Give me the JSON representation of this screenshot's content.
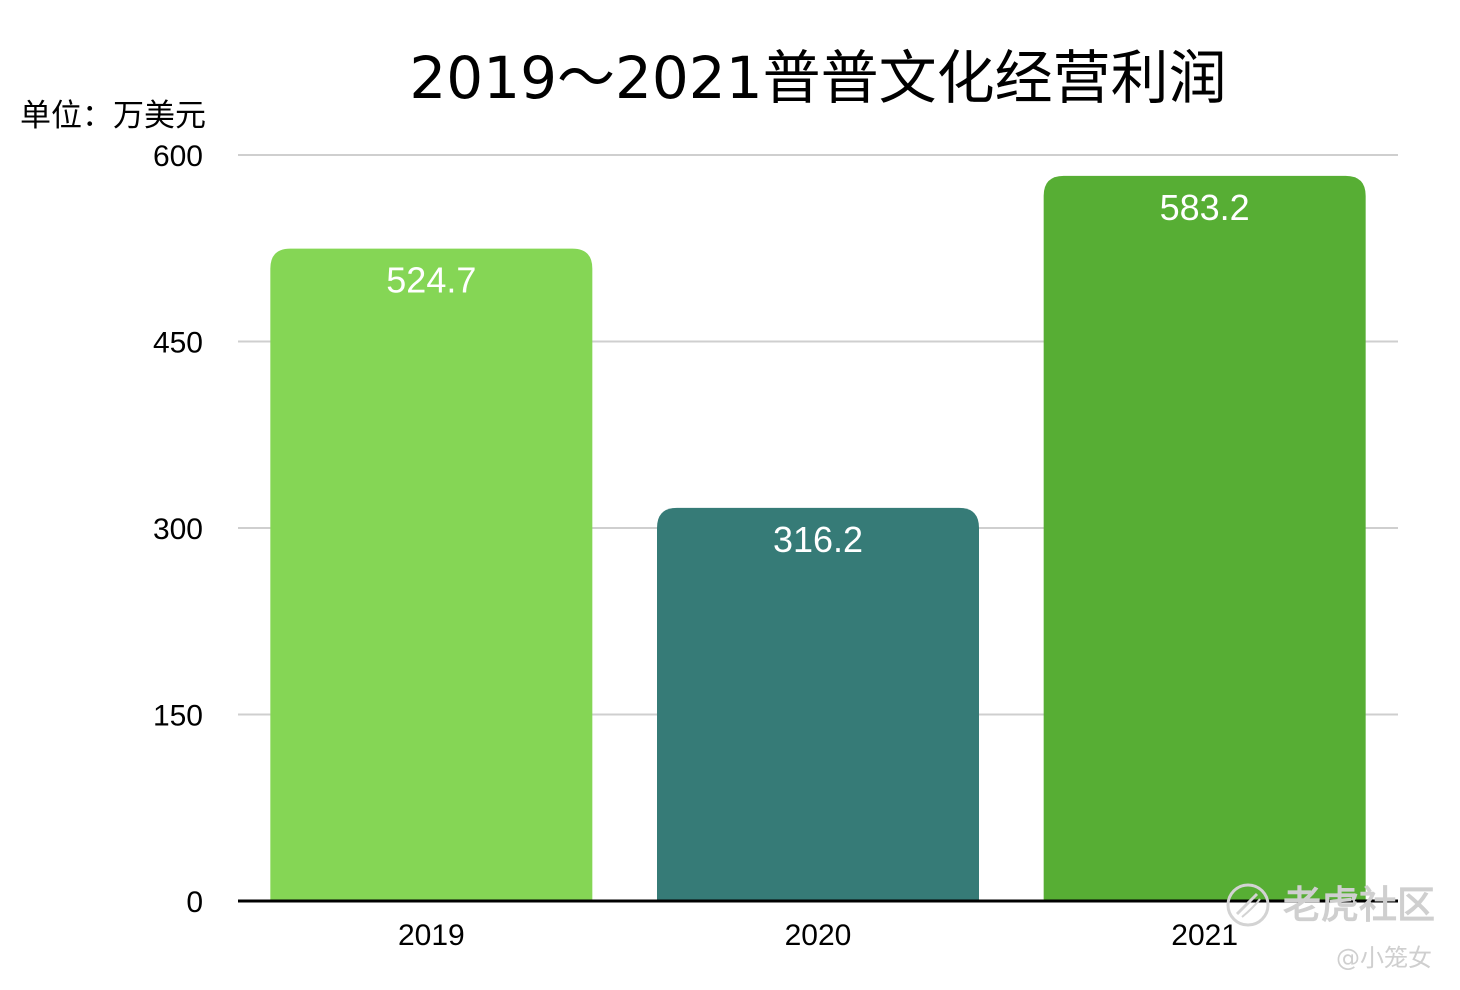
{
  "chart_data": {
    "type": "bar",
    "title": "2019～2021普普文化经营利润",
    "unit_label": "单位：万美元",
    "categories": [
      "2019",
      "2020",
      "2021"
    ],
    "values": [
      524.7,
      316.2,
      583.2
    ],
    "value_labels": [
      "524.7",
      "316.2",
      "583.2"
    ],
    "bar_colors": [
      "#85d655",
      "#367b77",
      "#57ae34"
    ],
    "ylim": [
      0,
      600
    ],
    "yticks": [
      0,
      150,
      300,
      450,
      600
    ],
    "grid": true,
    "legend": "none"
  },
  "watermark": {
    "brand": "老虎社区",
    "author": "@小笼女",
    "icon": "tiger-community-logo"
  }
}
